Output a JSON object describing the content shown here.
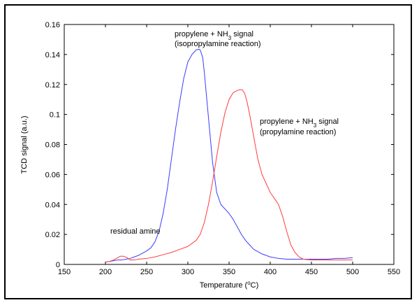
{
  "chart_data": {
    "type": "line",
    "xlabel": "Temperature (",
    "xlabel_unit_sup": "o",
    "xlabel_unit": "C)",
    "ylabel": "TCD signal (a.u.)",
    "xlim": [
      150,
      550
    ],
    "ylim": [
      0,
      0.16
    ],
    "x_ticks": [
      "150",
      "200",
      "250",
      "300",
      "350",
      "400",
      "450",
      "500",
      "550"
    ],
    "y_ticks": [
      "0",
      "0.02",
      "0.04",
      "0.06",
      "0.08",
      "0.1",
      "0.12",
      "0.14",
      "0.16"
    ],
    "grid": false,
    "series": [
      {
        "color": "#3b3bff",
        "x": [
          200,
          205,
          210,
          215,
          220,
          225,
          230,
          235,
          240,
          245,
          250,
          255,
          260,
          265,
          270,
          275,
          280,
          285,
          290,
          295,
          300,
          305,
          310,
          313,
          315,
          318,
          320,
          325,
          330,
          335,
          340,
          345,
          350,
          355,
          360,
          365,
          370,
          375,
          380,
          390,
          400,
          410,
          420,
          430,
          440,
          450,
          460,
          470,
          480,
          490,
          500
        ],
        "y": [
          0.0015,
          0.002,
          0.0025,
          0.003,
          0.003,
          0.0035,
          0.004,
          0.005,
          0.006,
          0.0075,
          0.009,
          0.011,
          0.015,
          0.022,
          0.034,
          0.05,
          0.07,
          0.09,
          0.108,
          0.124,
          0.135,
          0.14,
          0.143,
          0.1435,
          0.143,
          0.138,
          0.128,
          0.098,
          0.068,
          0.048,
          0.04,
          0.037,
          0.034,
          0.03,
          0.025,
          0.02,
          0.016,
          0.013,
          0.01,
          0.007,
          0.005,
          0.004,
          0.0035,
          0.0035,
          0.0035,
          0.0035,
          0.0035,
          0.0035,
          0.004,
          0.004,
          0.0045
        ]
      },
      {
        "color": "#ff3b3b",
        "x": [
          200,
          205,
          210,
          215,
          218,
          222,
          226,
          230,
          235,
          240,
          250,
          260,
          270,
          280,
          290,
          300,
          310,
          315,
          320,
          325,
          330,
          335,
          340,
          345,
          350,
          355,
          360,
          363,
          366,
          369,
          372,
          375,
          380,
          385,
          390,
          395,
          400,
          405,
          410,
          415,
          420,
          425,
          430,
          435,
          440,
          450,
          460,
          470,
          480,
          490,
          500
        ],
        "y": [
          0.0015,
          0.002,
          0.003,
          0.0045,
          0.0055,
          0.0055,
          0.0045,
          0.003,
          0.003,
          0.0035,
          0.004,
          0.005,
          0.0065,
          0.008,
          0.01,
          0.012,
          0.016,
          0.02,
          0.028,
          0.04,
          0.055,
          0.072,
          0.088,
          0.101,
          0.11,
          0.1145,
          0.116,
          0.1165,
          0.1165,
          0.114,
          0.108,
          0.1,
          0.085,
          0.07,
          0.06,
          0.054,
          0.048,
          0.044,
          0.04,
          0.032,
          0.022,
          0.013,
          0.008,
          0.005,
          0.0035,
          0.003,
          0.003,
          0.003,
          0.003,
          0.003,
          0.003
        ]
      }
    ],
    "annotations": [
      {
        "text": "propylene + NH",
        "sub": "3",
        "tail": " signal",
        "line2": "(isopropylamine reaction)"
      },
      {
        "text": "propylene + NH",
        "sub": "3",
        "tail": " signal",
        "line2": "(propylamine reaction)"
      },
      {
        "text": "residual amine"
      }
    ]
  }
}
